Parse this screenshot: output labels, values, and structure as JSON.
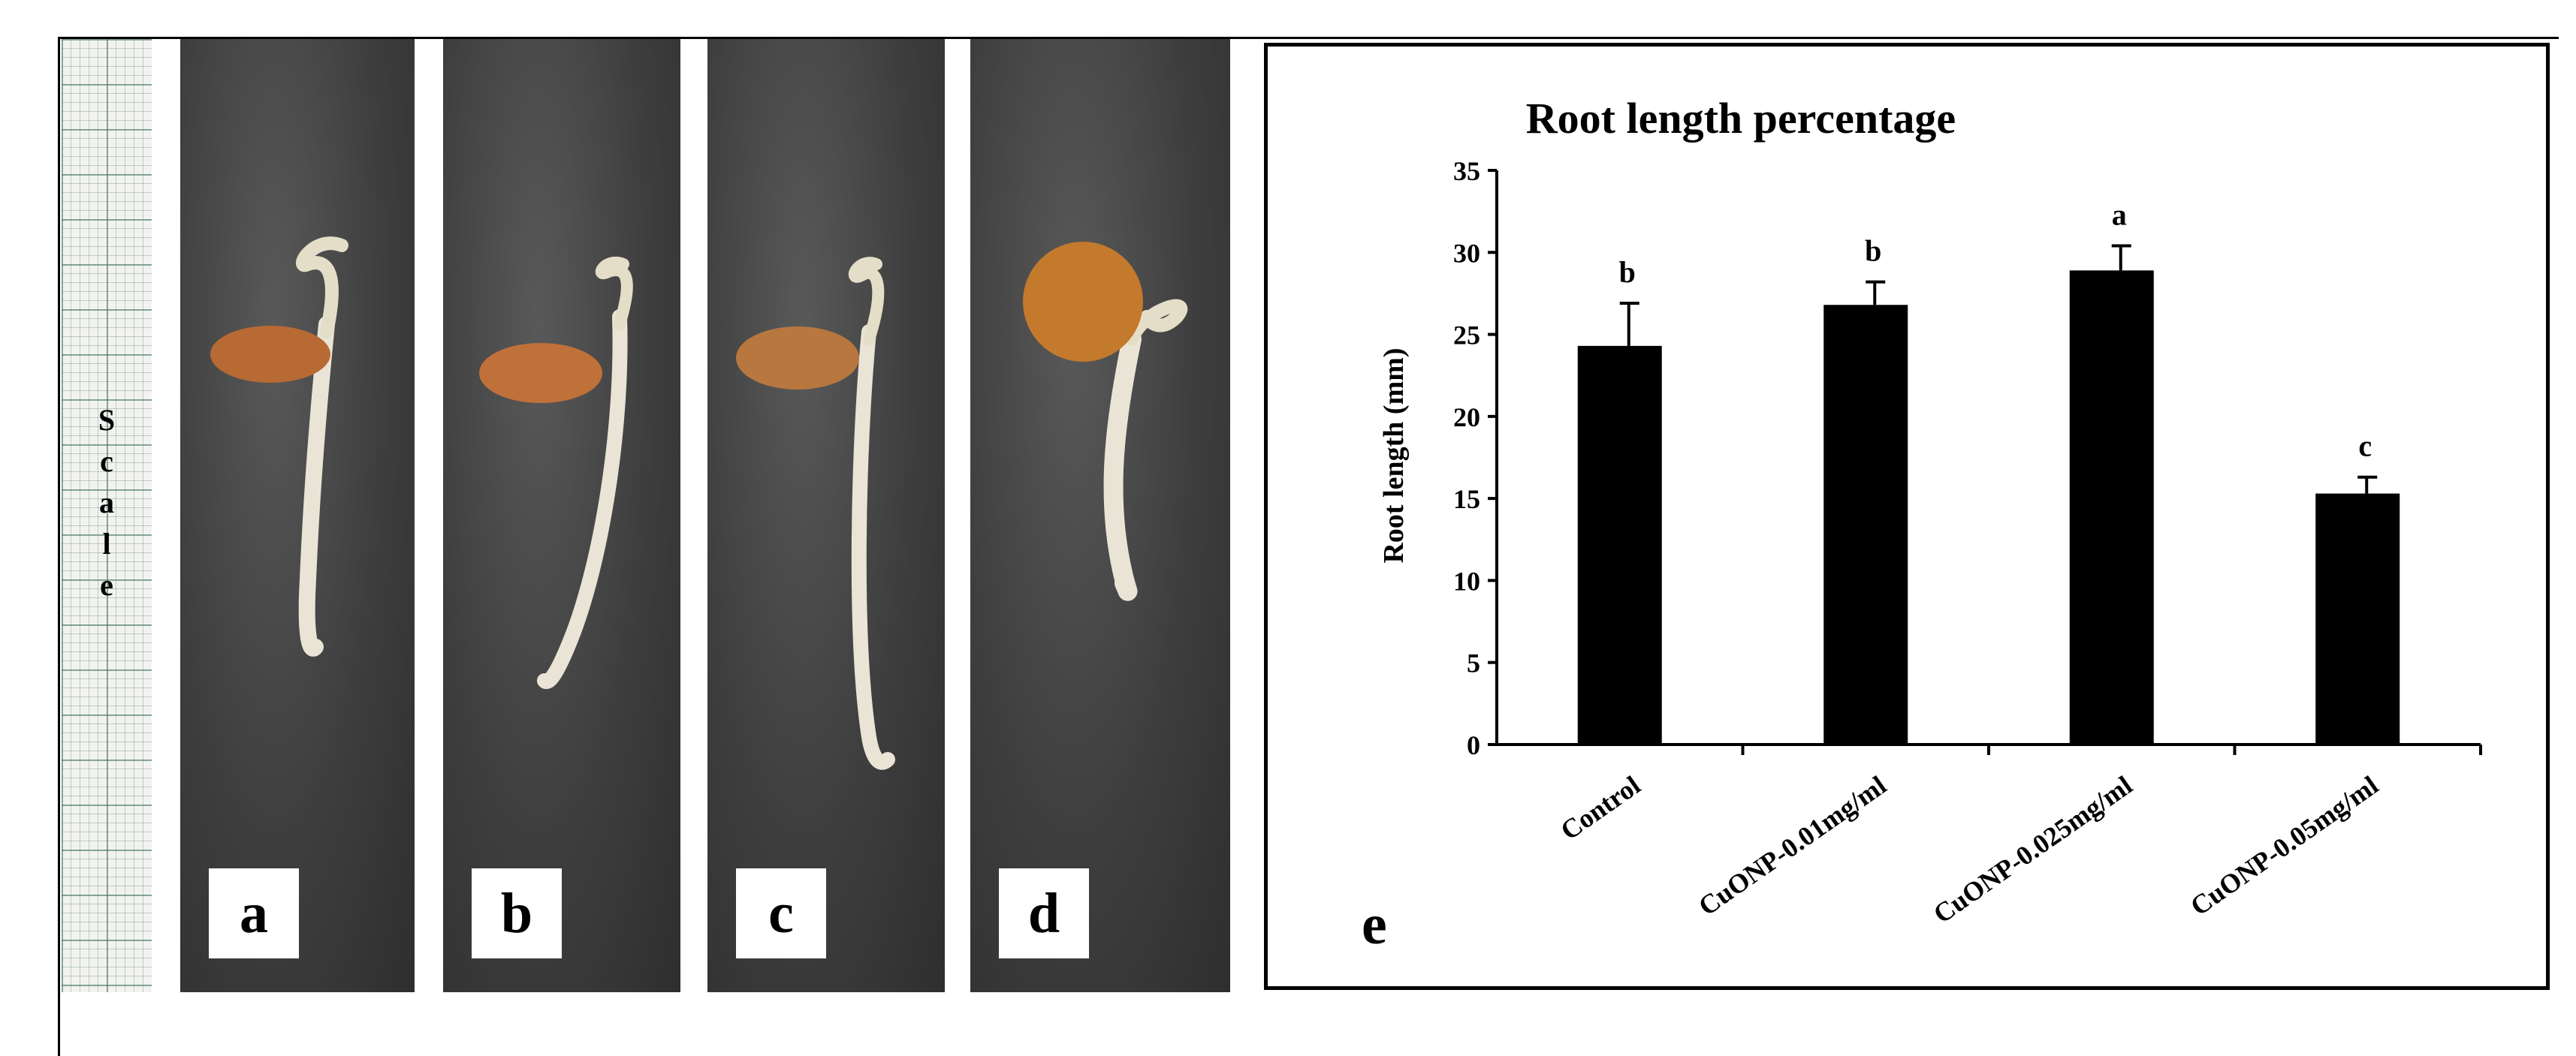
{
  "scale_label": [
    "S",
    "c",
    "a",
    "l",
    "e"
  ],
  "panels": [
    {
      "label": "a",
      "seed_color": "#b86a35"
    },
    {
      "label": "b",
      "seed_color": "#c0713a"
    },
    {
      "label": "c",
      "seed_color": "#b8773f"
    },
    {
      "label": "d",
      "seed_color": "#c47a2c"
    }
  ],
  "chart_panel_label": "e",
  "chart_data": {
    "type": "bar",
    "title": "Root length percentage",
    "xlabel": "",
    "ylabel": "Root length (mm)",
    "ylim": [
      0,
      35
    ],
    "yticks": [
      0,
      5,
      10,
      15,
      20,
      25,
      30,
      35
    ],
    "categories": [
      "Control",
      "CuONP-0.01mg/ml",
      "CuONP-0.025mg/ml",
      "CuONP-0.05mg/ml"
    ],
    "values": [
      24.3,
      26.8,
      28.9,
      15.3
    ],
    "errors": [
      2.6,
      1.4,
      1.5,
      1.0
    ],
    "significance": [
      "b",
      "b",
      "a",
      "c"
    ],
    "bar_color": "#000000",
    "grid": false
  }
}
